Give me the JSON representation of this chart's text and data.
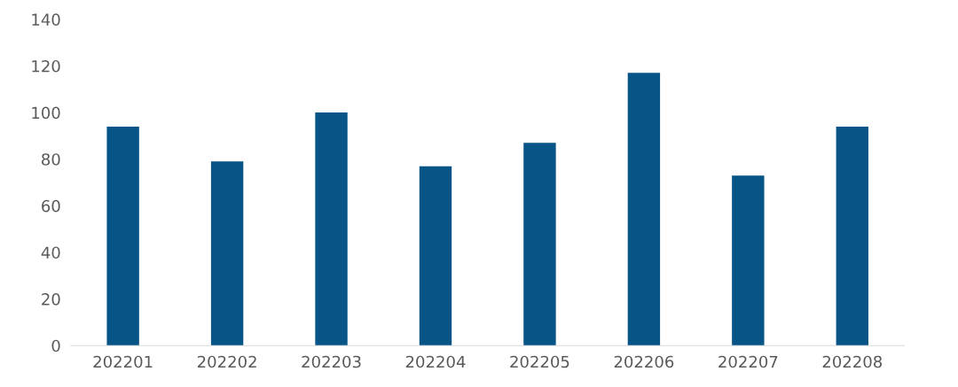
{
  "chart_data": {
    "type": "bar",
    "categories": [
      "202201",
      "202202",
      "202203",
      "202204",
      "202205",
      "202206",
      "202207",
      "202208"
    ],
    "values": [
      94,
      79,
      100,
      77,
      87,
      117,
      73,
      94
    ],
    "color": "#075487",
    "ylim": [
      0,
      140
    ],
    "yticks": [
      0,
      20,
      40,
      60,
      80,
      100,
      120,
      140
    ],
    "grid": false,
    "legend": false
  }
}
